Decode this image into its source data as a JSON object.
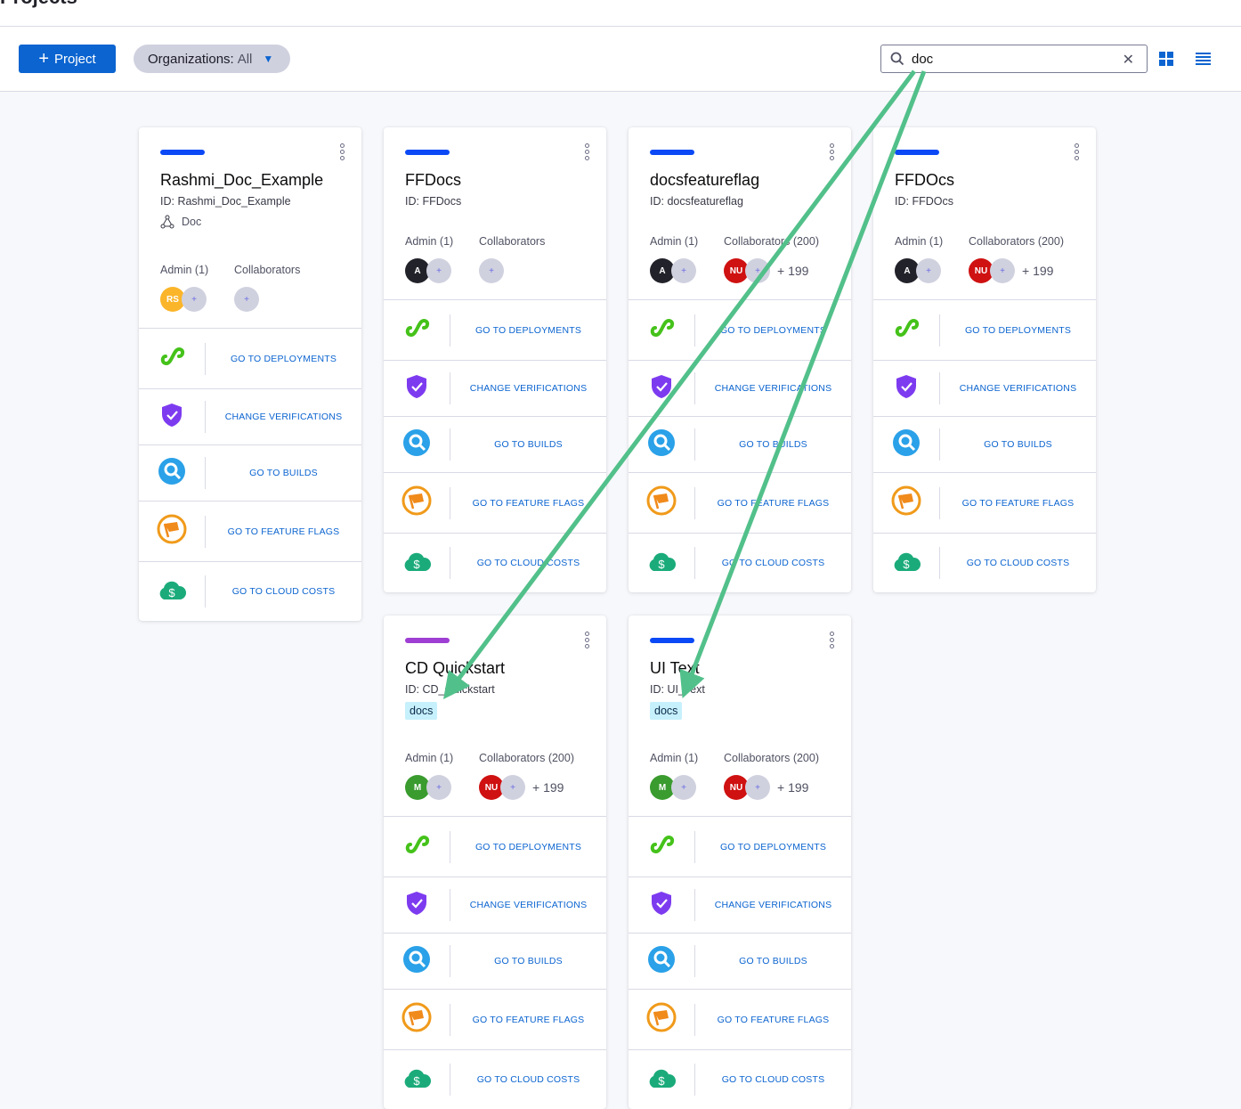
{
  "header": {
    "title": "Projects"
  },
  "toolbar": {
    "project_button": "Project",
    "org_label": "Organizations:",
    "org_value": "All",
    "search_value": "doc"
  },
  "colors": {
    "accent": "#0b64d0",
    "arrow": "#52c08a"
  },
  "projects": [
    {
      "stripe": "#0a49f5",
      "title": "Rashmi_Doc_Example",
      "id": "ID: Rashmi_Doc_Example",
      "org": "Doc",
      "admin_label": "Admin (1)",
      "collab_label": "Collaborators",
      "admin_avatar": {
        "initials": "RS",
        "color": "#fbb52a"
      },
      "collab_avatar": null,
      "collab_more": ""
    },
    {
      "stripe": "#0a49f5",
      "title": "FFDocs",
      "id": "ID: FFDocs",
      "admin_label": "Admin (1)",
      "collab_label": "Collaborators",
      "admin_avatar": {
        "initials": "A",
        "color": "#22222a"
      },
      "collab_avatar": null,
      "collab_more": ""
    },
    {
      "stripe": "#0a49f5",
      "title": "docsfeatureflag",
      "id": "ID: docsfeatureflag",
      "admin_label": "Admin (1)",
      "collab_label": "Collaborators (200)",
      "admin_avatar": {
        "initials": "A",
        "color": "#22222a"
      },
      "collab_avatar": {
        "initials": "NU",
        "color": "#cf1111"
      },
      "collab_more": "+ 199"
    },
    {
      "stripe": "#0a49f5",
      "title": "FFDOcs",
      "id": "ID: FFDOcs",
      "admin_label": "Admin (1)",
      "collab_label": "Collaborators (200)",
      "admin_avatar": {
        "initials": "A",
        "color": "#22222a"
      },
      "collab_avatar": {
        "initials": "NU",
        "color": "#cf1111"
      },
      "collab_more": "+ 199"
    },
    {
      "stripe": "#9e3ed3",
      "title": "CD Quickstart",
      "id": "ID: CD_Quickstart",
      "tag": "docs",
      "admin_label": "Admin (1)",
      "collab_label": "Collaborators (200)",
      "admin_avatar": {
        "initials": "M",
        "color": "#3a9b2f"
      },
      "collab_avatar": {
        "initials": "NU",
        "color": "#cf1111"
      },
      "collab_more": "+ 199"
    },
    {
      "stripe": "#0a49f5",
      "title": "UI Text",
      "id": "ID: UI_Text",
      "tag": "docs",
      "admin_label": "Admin (1)",
      "collab_label": "Collaborators (200)",
      "admin_avatar": {
        "initials": "M",
        "color": "#3a9b2f"
      },
      "collab_avatar": {
        "initials": "NU",
        "color": "#cf1111"
      },
      "collab_more": "+ 199"
    }
  ],
  "module_links": [
    {
      "icon": "deployments-icon",
      "label": "GO TO DEPLOYMENTS"
    },
    {
      "icon": "verification-shield-icon",
      "label": "CHANGE VERIFICATIONS"
    },
    {
      "icon": "builds-icon",
      "label": "GO TO BUILDS"
    },
    {
      "icon": "feature-flag-icon",
      "label": "GO TO FEATURE FLAGS"
    },
    {
      "icon": "cloud-costs-icon",
      "label": "GO TO CLOUD COSTS"
    }
  ]
}
